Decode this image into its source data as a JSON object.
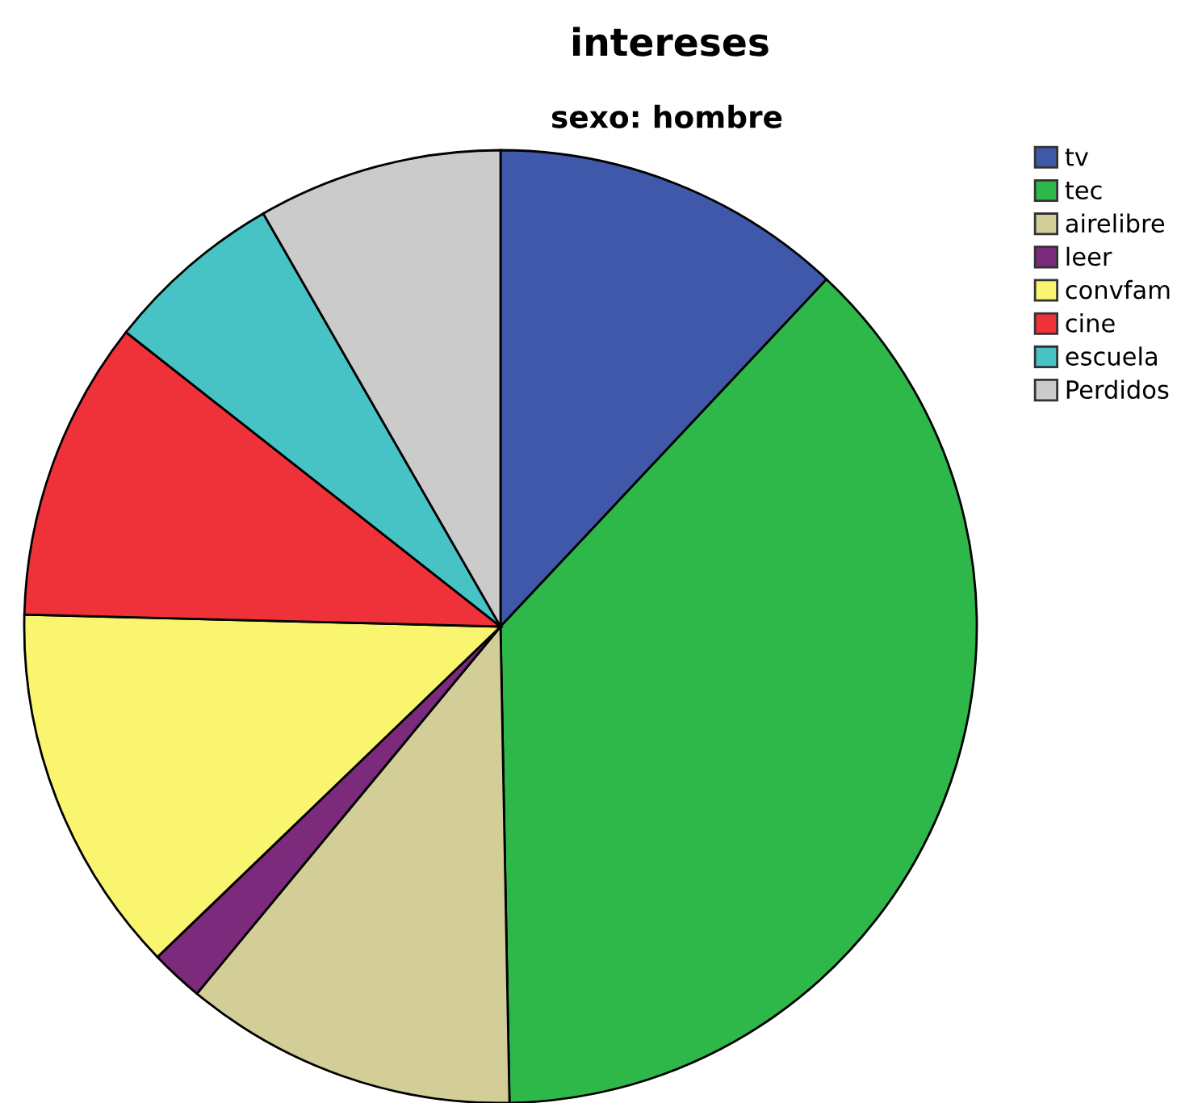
{
  "chart_data": {
    "type": "pie",
    "title": "intereses",
    "subtitle": "sexo: hombre",
    "categories": [
      "tv",
      "tec",
      "airelibre",
      "leer",
      "convfam",
      "cine",
      "escuela",
      "Perdidos"
    ],
    "values": [
      12,
      37.7,
      11.3,
      1.8,
      12.6,
      10.2,
      6.1,
      8.3
    ],
    "colors": [
      "#3f58a9",
      "#2fb84a",
      "#d3cd98",
      "#7b2a7c",
      "#f9f56f",
      "#ef3139",
      "#47c2c5",
      "#cbcbcb"
    ],
    "legend": "top right"
  }
}
